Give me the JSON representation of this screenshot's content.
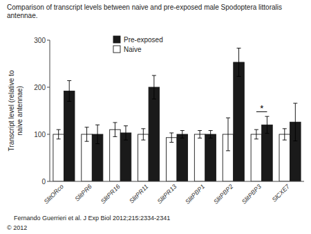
{
  "chart_data": {
    "type": "bar",
    "title": "Comparison of transcript levels between naive and pre-exposed male Spodoptera littoralis\nantennae.",
    "ylabel": "Transcript level (relative to\nnaive antennae)",
    "categories": [
      "SlitORco",
      "SlitPR6",
      "SlitPR16",
      "SlitPR11",
      "SlitPR13",
      "SlitPBP1",
      "SlitPBP2",
      "SlitPBP3",
      "SlCXE7"
    ],
    "series": [
      {
        "name": "Naive",
        "color": "#ffffff",
        "edge_color": "#1a1a1a",
        "values": [
          100,
          100,
          110,
          100,
          93,
          100,
          100,
          100,
          100
        ],
        "errors": [
          10,
          15,
          15,
          12,
          10,
          8,
          35,
          10,
          12
        ]
      },
      {
        "name": "Pre-exposed",
        "color": "#1a1a1a",
        "edge_color": "#1a1a1a",
        "values": [
          192,
          100,
          103,
          200,
          100,
          100,
          253,
          120,
          126
        ],
        "errors": [
          22,
          20,
          15,
          25,
          8,
          8,
          30,
          18,
          40
        ]
      }
    ],
    "ylim": [
      0,
      300
    ],
    "yticks": [
      0,
      100,
      200,
      300
    ],
    "grid": false,
    "legend": "upper left",
    "annotations": [
      {
        "text": "*",
        "category": "SlitPBP3",
        "y": 154,
        "line_y": 148
      }
    ],
    "footnote": "Fernando Guerrieri et al. J Exp Biol 2012;215:2334-2341",
    "copyright": "© 2012"
  }
}
